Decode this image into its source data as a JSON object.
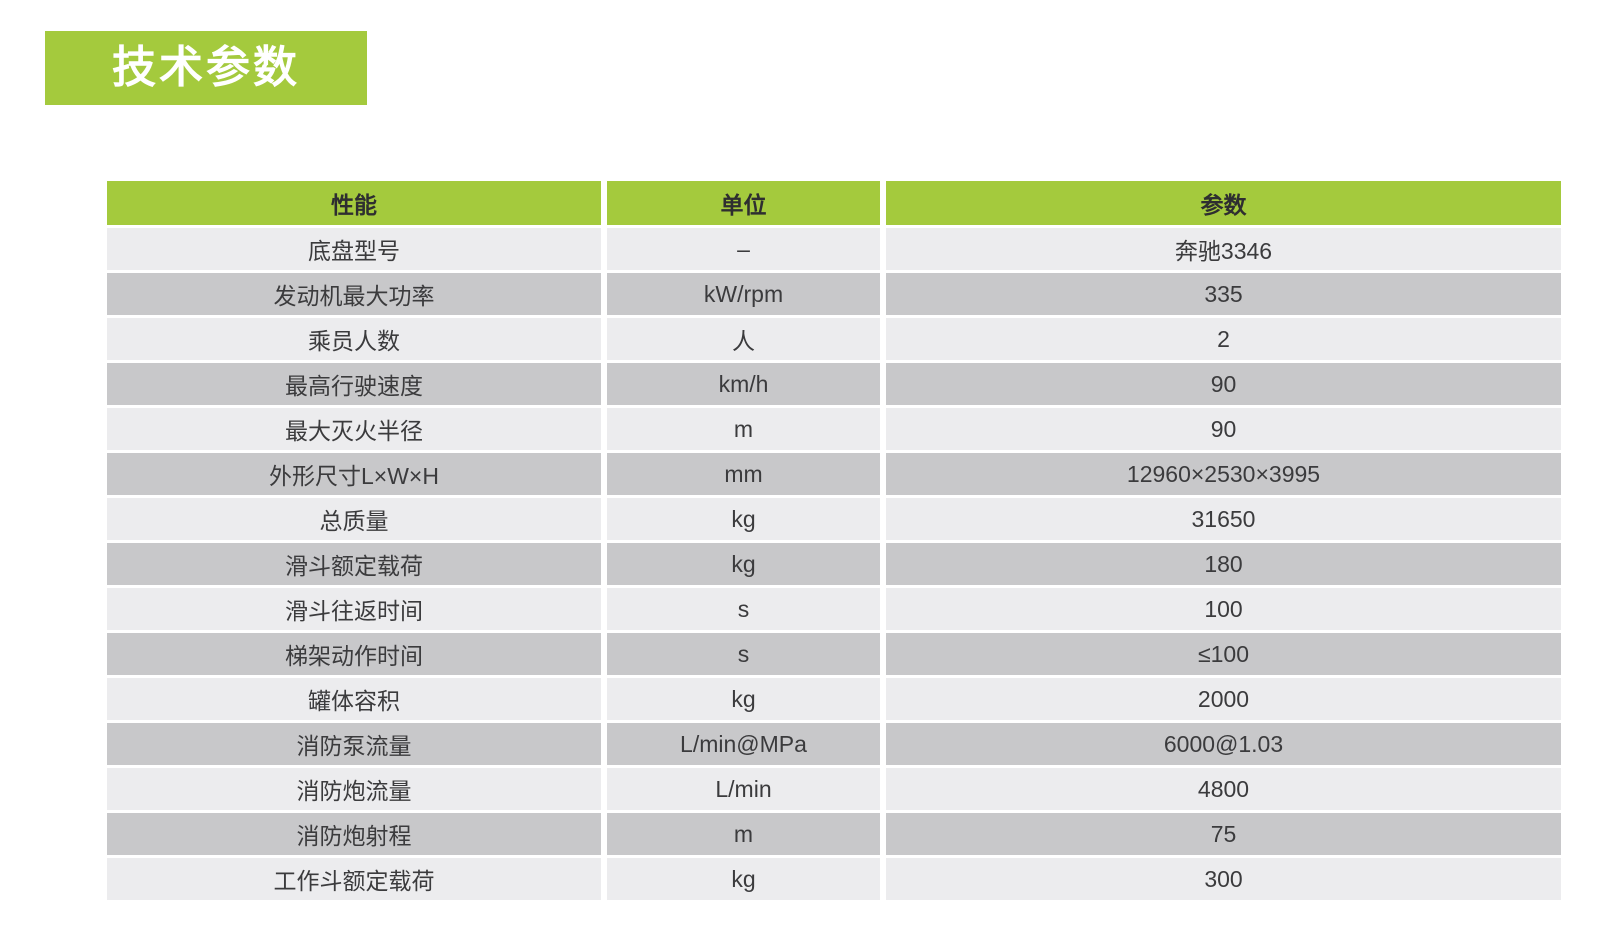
{
  "title": {
    "text": "技术参数"
  },
  "colors": {
    "accent_green": "#a4ca3d",
    "row_light": "#ececee",
    "row_dark": "#c8c8ca",
    "header_text": "#2e2e30",
    "body_text": "#3b3b3d",
    "title_text": "#ffffff",
    "page_background": "#ffffff"
  },
  "table": {
    "columns": [
      {
        "key": "property",
        "label": "性能"
      },
      {
        "key": "unit",
        "label": "单位"
      },
      {
        "key": "value",
        "label": "参数"
      }
    ],
    "rows": [
      {
        "property": "底盘型号",
        "unit": "–",
        "value": "奔驰3346"
      },
      {
        "property": "发动机最大功率",
        "unit": "kW/rpm",
        "value": "335"
      },
      {
        "property": "乘员人数",
        "unit": "人",
        "value": "2"
      },
      {
        "property": "最高行驶速度",
        "unit": "km/h",
        "value": "90"
      },
      {
        "property": "最大灭火半径",
        "unit": "m",
        "value": "90"
      },
      {
        "property": "外形尺寸L×W×H",
        "unit": "mm",
        "value": "12960×2530×3995"
      },
      {
        "property": "总质量",
        "unit": "kg",
        "value": "31650"
      },
      {
        "property": "滑斗额定载荷",
        "unit": "kg",
        "value": "180"
      },
      {
        "property": "滑斗往返时间",
        "unit": "s",
        "value": "100"
      },
      {
        "property": "梯架动作时间",
        "unit": "s",
        "value": "≤100"
      },
      {
        "property": "罐体容积",
        "unit": "kg",
        "value": "2000"
      },
      {
        "property": "消防泵流量",
        "unit": "L/min@MPa",
        "value": "6000@1.03"
      },
      {
        "property": "消防炮流量",
        "unit": "L/min",
        "value": "4800"
      },
      {
        "property": "消防炮射程",
        "unit": "m",
        "value": "75"
      },
      {
        "property": "工作斗额定载荷",
        "unit": "kg",
        "value": "300"
      }
    ]
  }
}
